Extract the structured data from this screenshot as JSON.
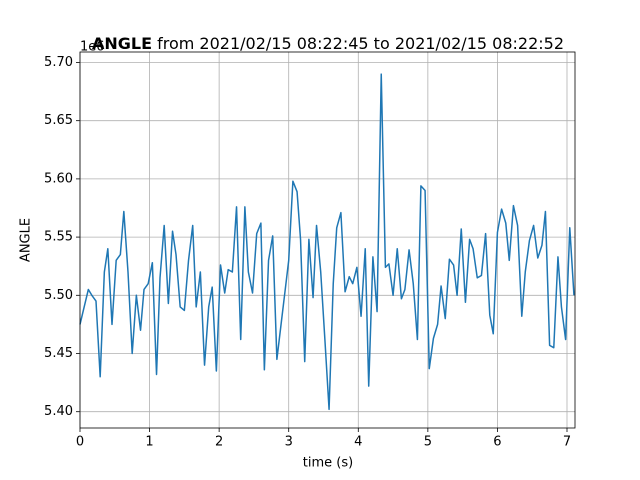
{
  "chart_data": {
    "type": "line",
    "title_bold": "ANGLE",
    "title": "from 2021/02/15 08:22:45 to 2021/02/15 08:22:52",
    "offset_text": "1e6",
    "xlabel": "time (s)",
    "ylabel": "ANGLE",
    "grid": true,
    "xlim": [
      0,
      7.115
    ],
    "ylim": [
      5.386,
      5.709
    ],
    "xticks": [
      0,
      1,
      2,
      3,
      4,
      5,
      6,
      7
    ],
    "yticks": [
      {
        "value": 5.4,
        "label": "5.40"
      },
      5.45,
      {
        "value": 5.5,
        "label": "5.50"
      },
      5.55,
      {
        "value": 5.6,
        "label": "5.60"
      },
      5.65,
      {
        "value": 5.7,
        "label": "5.70"
      }
    ],
    "x": [
      0,
      0.06,
      0.12,
      0.17,
      0.23,
      0.29,
      0.35,
      0.4,
      0.46,
      0.52,
      0.58,
      0.63,
      0.69,
      0.75,
      0.81,
      0.87,
      0.92,
      0.98,
      1.04,
      1.1,
      1.15,
      1.21,
      1.27,
      1.33,
      1.38,
      1.44,
      1.5,
      1.56,
      1.62,
      1.67,
      1.73,
      1.79,
      1.85,
      1.9,
      1.96,
      2.02,
      2.08,
      2.13,
      2.19,
      2.25,
      2.31,
      2.37,
      2.42,
      2.48,
      2.54,
      2.6,
      2.65,
      2.71,
      2.77,
      2.83,
      2.89,
      2.94,
      3.0,
      3.06,
      3.12,
      3.17,
      3.23,
      3.29,
      3.35,
      3.4,
      3.46,
      3.52,
      3.58,
      3.64,
      3.69,
      3.75,
      3.81,
      3.87,
      3.92,
      3.98,
      4.04,
      4.1,
      4.15,
      4.21,
      4.27,
      4.33,
      4.39,
      4.44,
      4.5,
      4.56,
      4.62,
      4.67,
      4.73,
      4.79,
      4.85,
      4.9,
      4.96,
      5.02,
      5.08,
      5.14,
      5.19,
      5.25,
      5.31,
      5.37,
      5.42,
      5.48,
      5.54,
      5.6,
      5.65,
      5.71,
      5.77,
      5.83,
      5.89,
      5.94,
      6.0,
      6.06,
      6.12,
      6.17,
      6.23,
      6.29,
      6.35,
      6.4,
      6.46,
      6.52,
      6.58,
      6.64,
      6.69,
      6.75,
      6.81,
      6.87,
      6.92,
      6.98,
      7.04,
      7.1
    ],
    "series": [
      {
        "name": "ANGLE",
        "color": "#1f77b4",
        "values": [
          5.475,
          5.49,
          5.505,
          5.5,
          5.495,
          5.43,
          5.52,
          5.54,
          5.475,
          5.53,
          5.535,
          5.572,
          5.52,
          5.45,
          5.5,
          5.47,
          5.505,
          5.51,
          5.528,
          5.432,
          5.515,
          5.56,
          5.493,
          5.555,
          5.535,
          5.49,
          5.487,
          5.53,
          5.56,
          5.49,
          5.52,
          5.44,
          5.49,
          5.507,
          5.435,
          5.526,
          5.502,
          5.522,
          5.52,
          5.576,
          5.462,
          5.576,
          5.52,
          5.502,
          5.553,
          5.562,
          5.436,
          5.53,
          5.551,
          5.445,
          5.475,
          5.5,
          5.53,
          5.598,
          5.589,
          5.548,
          5.443,
          5.548,
          5.498,
          5.56,
          5.52,
          5.462,
          5.402,
          5.51,
          5.558,
          5.571,
          5.503,
          5.516,
          5.51,
          5.524,
          5.482,
          5.54,
          5.422,
          5.533,
          5.486,
          5.69,
          5.524,
          5.527,
          5.5,
          5.54,
          5.497,
          5.505,
          5.539,
          5.51,
          5.462,
          5.594,
          5.59,
          5.437,
          5.463,
          5.475,
          5.508,
          5.48,
          5.531,
          5.526,
          5.5,
          5.557,
          5.494,
          5.548,
          5.54,
          5.515,
          5.517,
          5.553,
          5.483,
          5.467,
          5.554,
          5.574,
          5.562,
          5.53,
          5.577,
          5.56,
          5.482,
          5.52,
          5.547,
          5.56,
          5.532,
          5.543,
          5.572,
          5.457,
          5.455,
          5.533,
          5.49,
          5.462,
          5.558,
          5.5
        ]
      }
    ]
  }
}
